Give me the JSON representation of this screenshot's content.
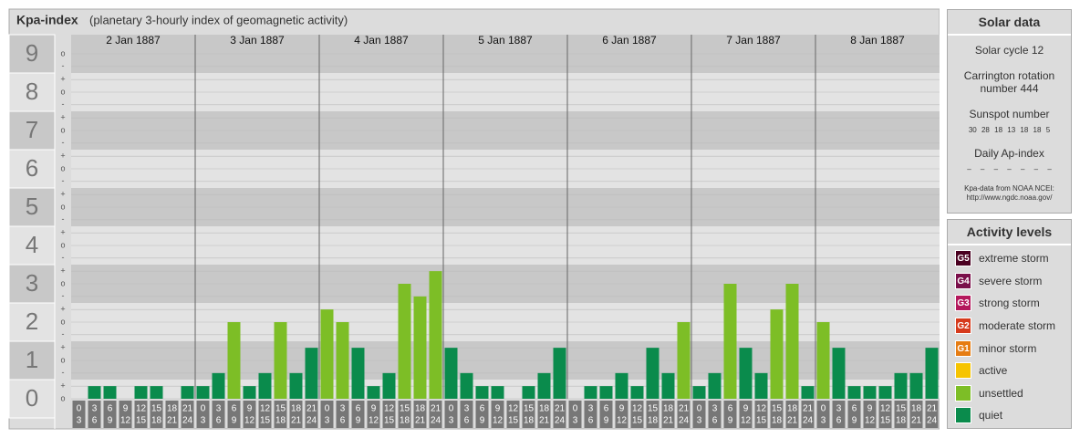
{
  "chart_data": {
    "type": "bar",
    "title": "Kpa-index",
    "subtitle": "(planetary 3-hourly index of geomagnetic activity)",
    "ylim": [
      0,
      9.5
    ],
    "major_ticks": [
      0,
      1,
      2,
      3,
      4,
      5,
      6,
      7,
      8,
      9
    ],
    "yticks": [
      {
        "value": 0,
        "label": "o"
      },
      {
        "value": 0.33,
        "label": "+"
      },
      {
        "value": 0.67,
        "label": "-"
      },
      {
        "value": 1,
        "label": "o"
      },
      {
        "value": 1.33,
        "label": "+"
      },
      {
        "value": 1.67,
        "label": "-"
      },
      {
        "value": 2,
        "label": "o"
      },
      {
        "value": 2.33,
        "label": "+"
      },
      {
        "value": 2.67,
        "label": "-"
      },
      {
        "value": 3,
        "label": "o"
      },
      {
        "value": 3.33,
        "label": "+"
      },
      {
        "value": 3.67,
        "label": "-"
      },
      {
        "value": 4,
        "label": "o"
      },
      {
        "value": 4.33,
        "label": "+"
      },
      {
        "value": 4.67,
        "label": "-"
      },
      {
        "value": 5,
        "label": "o"
      },
      {
        "value": 5.33,
        "label": "+"
      },
      {
        "value": 5.67,
        "label": "-"
      },
      {
        "value": 6,
        "label": "o"
      },
      {
        "value": 6.33,
        "label": "+"
      },
      {
        "value": 6.67,
        "label": "-"
      },
      {
        "value": 7,
        "label": "o"
      },
      {
        "value": 7.33,
        "label": "+"
      },
      {
        "value": 7.67,
        "label": "-"
      },
      {
        "value": 8,
        "label": "o"
      },
      {
        "value": 8.33,
        "label": "+"
      },
      {
        "value": 8.67,
        "label": "-"
      },
      {
        "value": 9,
        "label": "o"
      }
    ],
    "hours": [
      {
        "from": "0",
        "to": "3"
      },
      {
        "from": "3",
        "to": "6"
      },
      {
        "from": "6",
        "to": "9"
      },
      {
        "from": "9",
        "to": "12"
      },
      {
        "from": "12",
        "to": "15"
      },
      {
        "from": "15",
        "to": "18"
      },
      {
        "from": "18",
        "to": "21"
      },
      {
        "from": "21",
        "to": "24"
      }
    ],
    "series": [
      {
        "name": "2 Jan 1887",
        "values": [
          0,
          0.33,
          0.33,
          0,
          0.33,
          0.33,
          0,
          0.33
        ],
        "colors": [
          "#0a8b4c",
          "#0a8b4c",
          "#0a8b4c",
          "#0a8b4c",
          "#0a8b4c",
          "#0a8b4c",
          "#0a8b4c",
          "#0a8b4c"
        ]
      },
      {
        "name": "3 Jan 1887",
        "values": [
          0.33,
          0.67,
          2,
          0.33,
          0.67,
          2,
          0.67,
          1.33
        ],
        "colors": [
          "#0a8b4c",
          "#0a8b4c",
          "#7dbe26",
          "#0a8b4c",
          "#0a8b4c",
          "#7dbe26",
          "#0a8b4c",
          "#0a8b4c"
        ]
      },
      {
        "name": "4 Jan 1887",
        "values": [
          2.33,
          2,
          1.33,
          0.33,
          0.67,
          3,
          2.67,
          3.33
        ],
        "colors": [
          "#7dbe26",
          "#7dbe26",
          "#0a8b4c",
          "#0a8b4c",
          "#0a8b4c",
          "#7dbe26",
          "#7dbe26",
          "#7dbe26"
        ]
      },
      {
        "name": "5 Jan 1887",
        "values": [
          1.33,
          0.67,
          0.33,
          0.33,
          0,
          0.33,
          0.67,
          1.33
        ],
        "colors": [
          "#0a8b4c",
          "#0a8b4c",
          "#0a8b4c",
          "#0a8b4c",
          "#0a8b4c",
          "#0a8b4c",
          "#0a8b4c",
          "#0a8b4c"
        ]
      },
      {
        "name": "6 Jan 1887",
        "values": [
          0,
          0.33,
          0.33,
          0.67,
          0.33,
          1.33,
          0.67,
          2
        ],
        "colors": [
          "#0a8b4c",
          "#0a8b4c",
          "#0a8b4c",
          "#0a8b4c",
          "#0a8b4c",
          "#0a8b4c",
          "#0a8b4c",
          "#7dbe26"
        ]
      },
      {
        "name": "7 Jan 1887",
        "values": [
          0.33,
          0.67,
          3,
          1.33,
          0.67,
          2.33,
          3,
          0.33
        ],
        "colors": [
          "#0a8b4c",
          "#0a8b4c",
          "#7dbe26",
          "#0a8b4c",
          "#0a8b4c",
          "#7dbe26",
          "#7dbe26",
          "#0a8b4c"
        ]
      },
      {
        "name": "8 Jan 1887",
        "values": [
          2,
          1.33,
          0.33,
          0.33,
          0.33,
          0.67,
          0.67,
          1.33
        ],
        "colors": [
          "#7dbe26",
          "#0a8b4c",
          "#0a8b4c",
          "#0a8b4c",
          "#0a8b4c",
          "#0a8b4c",
          "#0a8b4c",
          "#0a8b4c"
        ]
      }
    ]
  },
  "solar_data": {
    "title": "Solar data",
    "cycle": "Solar cycle 12",
    "carrington": "Carrington rotation number 444",
    "sunspot_title": "Sunspot number",
    "sunspot_numbers": [
      30,
      28,
      18,
      13,
      18,
      18,
      5
    ],
    "ap_title": "Daily Ap-index",
    "ap_values": [
      "–",
      "–",
      "–",
      "–",
      "–",
      "–",
      "–"
    ],
    "source": "Kpa-data from NOAA NCEI:",
    "source_url": "http://www.ngdc.noaa.gov/"
  },
  "activity_levels": {
    "title": "Activity levels",
    "items": [
      {
        "code": "G5",
        "label": "extreme storm",
        "color": "#4a0020"
      },
      {
        "code": "G4",
        "label": "severe storm",
        "color": "#7a0f4a"
      },
      {
        "code": "G3",
        "label": "strong storm",
        "color": "#b4185c"
      },
      {
        "code": "G2",
        "label": "moderate storm",
        "color": "#d63a1c"
      },
      {
        "code": "G1",
        "label": "minor storm",
        "color": "#e67c12"
      },
      {
        "code": "",
        "label": "active",
        "color": "#f6c400"
      },
      {
        "code": "",
        "label": "unsettled",
        "color": "#7dbe26"
      },
      {
        "code": "",
        "label": "quiet",
        "color": "#0a8b4c"
      }
    ]
  }
}
